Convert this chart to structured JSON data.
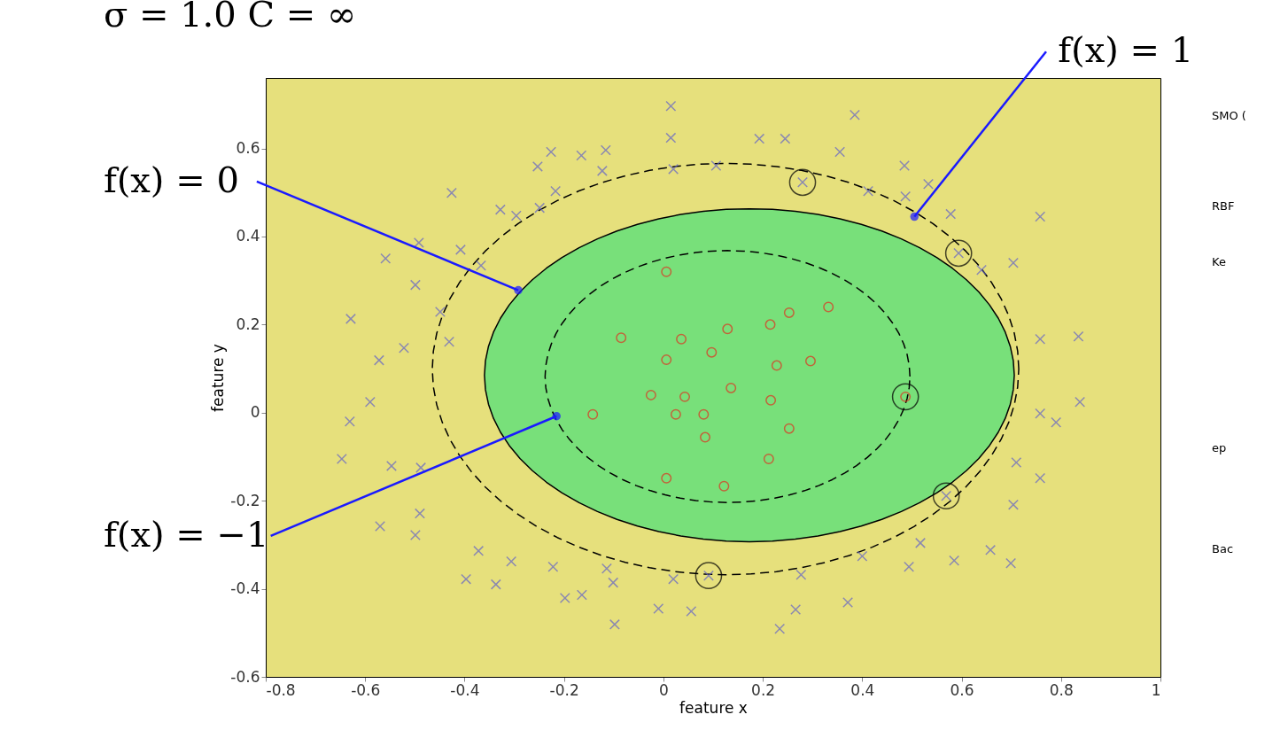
{
  "chart_data": {
    "type": "scatter",
    "title": "σ = 1.0   C = ∞",
    "xlabel": "feature x",
    "ylabel": "feature y",
    "xlim": [
      -0.8,
      1
    ],
    "ylim": [
      -0.6,
      0.76
    ],
    "xticks": [
      -0.8,
      -0.6,
      -0.4,
      -0.2,
      0,
      0.2,
      0.4,
      0.6,
      0.8,
      1
    ],
    "yticks": [
      -0.6,
      -0.4,
      -0.2,
      0,
      0.2,
      0.4,
      0.6
    ],
    "grid": false,
    "series": [
      {
        "color": "#6464c8",
        "marker": "cross",
        "x": [
          0.015,
          0.015,
          -0.116,
          -0.226,
          -0.165,
          -0.253,
          -0.123,
          0.02,
          0.106,
          0.193,
          0.245,
          0.355,
          0.385,
          0.485,
          0.533,
          0.487,
          0.412,
          0.28,
          -0.217,
          -0.249,
          -0.296,
          -0.328,
          -0.426,
          -0.492,
          -0.559,
          -0.408,
          -0.367,
          -0.499,
          -0.449,
          -0.629,
          -0.572,
          -0.522,
          -0.431,
          0.578,
          0.704,
          0.64,
          0.594,
          0.758,
          0.758,
          0.835,
          0.838,
          0.758,
          0.79,
          -0.631,
          -0.59,
          -0.647,
          -0.547,
          -0.488,
          -0.49,
          -0.57,
          -0.499,
          0.569,
          0.71,
          0.758,
          0.704,
          0.658,
          0.585,
          0.517,
          0.494,
          0.4,
          0.699,
          -0.372,
          -0.306,
          -0.397,
          -0.337,
          -0.222,
          -0.114,
          -0.101,
          -0.198,
          -0.164,
          0.02,
          0.091,
          0.277,
          -0.01,
          0.056,
          -0.098,
          0.266,
          0.371,
          0.234
        ],
        "values": [
          0.696,
          0.624,
          0.596,
          0.592,
          0.584,
          0.559,
          0.549,
          0.553,
          0.561,
          0.622,
          0.622,
          0.592,
          0.676,
          0.561,
          0.519,
          0.491,
          0.503,
          0.523,
          0.503,
          0.465,
          0.447,
          0.461,
          0.499,
          0.386,
          0.35,
          0.37,
          0.334,
          0.29,
          0.229,
          0.213,
          0.119,
          0.147,
          0.161,
          0.451,
          0.34,
          0.324,
          0.362,
          0.445,
          0.167,
          0.173,
          0.024,
          -0.002,
          -0.022,
          -0.02,
          0.024,
          -0.105,
          -0.121,
          -0.125,
          -0.229,
          -0.258,
          -0.278,
          -0.189,
          -0.113,
          -0.149,
          -0.209,
          -0.312,
          -0.336,
          -0.296,
          -0.35,
          -0.326,
          -0.342,
          -0.314,
          -0.338,
          -0.378,
          -0.39,
          -0.35,
          -0.354,
          -0.386,
          -0.421,
          -0.414,
          -0.378,
          -0.37,
          -0.368,
          -0.445,
          -0.451,
          -0.481,
          -0.447,
          -0.431,
          -0.491
        ]
      },
      {
        "color": "#e03020",
        "marker": "circle",
        "x": [
          0.006,
          -0.085,
          0.036,
          0.129,
          0.215,
          0.253,
          0.332,
          0.006,
          0.097,
          0.228,
          0.296,
          -0.025,
          0.043,
          0.136,
          -0.142,
          0.025,
          0.081,
          0.216,
          0.084,
          0.253,
          0.212,
          0.006,
          0.122,
          0.487
        ],
        "values": [
          0.32,
          0.17,
          0.167,
          0.19,
          0.2,
          0.227,
          0.24,
          0.12,
          0.137,
          0.107,
          0.117,
          0.04,
          0.036,
          0.056,
          -0.004,
          -0.004,
          -0.004,
          0.028,
          -0.056,
          -0.036,
          -0.105,
          -0.149,
          -0.167,
          0.036
        ]
      },
      {
        "type": "bubble",
        "color": "#000000",
        "marker": "circle",
        "x": [
          0.28,
          0.594,
          0.487,
          0.569,
          0.091
        ],
        "values": [
          0.523,
          0.362,
          0.036,
          -0.189,
          -0.37
        ],
        "sizes": [
          1,
          1,
          1,
          1,
          1
        ]
      }
    ],
    "annotations": [
      {
        "text": "f(x) = 0",
        "x": -0.292,
        "y": 0.278
      },
      {
        "text": "f(x) = −1",
        "x": -0.215,
        "y": -0.008
      },
      {
        "text": "f(x) = 1",
        "x": 0.505,
        "y": 0.445
      },
      "SMO (",
      "RBF",
      "Ke",
      "ep",
      "Bac"
    ]
  }
}
